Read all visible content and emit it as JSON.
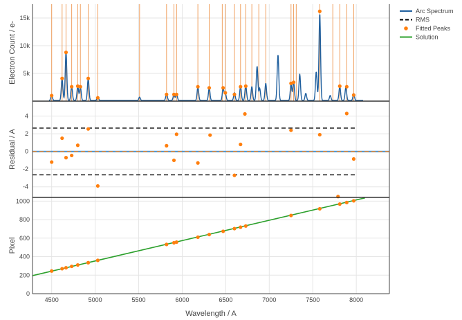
{
  "chart_data": {
    "type": "line",
    "xlabel": "Wavelength / A",
    "x_ticks": [
      4500,
      5000,
      5500,
      6000,
      6500,
      7000,
      7500,
      8000
    ],
    "xlim": [
      4280,
      8380
    ],
    "colors": {
      "spectrum": "#1f5f9e",
      "peaks": "#ff7f0e",
      "line_markers": "#f0a060",
      "rms": "#000000",
      "solution": "#2ca02c",
      "zero_line": "#4a90c8"
    },
    "legend": {
      "placement": "top-right",
      "entries": [
        "Arc Spectrum",
        "RMS",
        "Fitted Peaks",
        "Solution"
      ]
    },
    "panels": [
      {
        "name": "spectrum",
        "ylabel": "Electron Count / e-",
        "ylim": [
          0,
          17500
        ],
        "y_ticks": [
          5000,
          10000,
          15000
        ],
        "y_tick_labels": [
          "5k",
          "10k",
          "15k"
        ],
        "arc_lines": [
          4500,
          4620,
          4665,
          4730,
          4800,
          4830,
          4920,
          5030,
          5510,
          5820,
          5905,
          5935,
          6180,
          6310,
          6460,
          6495,
          6600,
          6670,
          6730,
          6800,
          6880,
          6960,
          7250,
          7280,
          7310,
          7580,
          7730,
          7810,
          7890,
          7970
        ],
        "spectrum_peaks": [
          [
            4500,
            1000
          ],
          [
            4620,
            4000
          ],
          [
            4665,
            8800
          ],
          [
            4730,
            2600
          ],
          [
            4800,
            2600
          ],
          [
            4830,
            2500
          ],
          [
            4920,
            4000
          ],
          [
            5030,
            700
          ],
          [
            5510,
            600
          ],
          [
            5820,
            1300
          ],
          [
            5905,
            1100
          ],
          [
            5935,
            1200
          ],
          [
            6180,
            2500
          ],
          [
            6310,
            2300
          ],
          [
            6470,
            2300
          ],
          [
            6495,
            1400
          ],
          [
            6600,
            1400
          ],
          [
            6670,
            2600
          ],
          [
            6730,
            2800
          ],
          [
            6800,
            2500
          ],
          [
            6860,
            6200
          ],
          [
            6890,
            2200
          ],
          [
            6960,
            3100
          ],
          [
            7100,
            8300
          ],
          [
            7250,
            3000
          ],
          [
            7280,
            3400
          ],
          [
            7350,
            4800
          ],
          [
            7420,
            1300
          ],
          [
            7540,
            5200
          ],
          [
            7580,
            15800
          ],
          [
            7700,
            900
          ],
          [
            7810,
            2600
          ],
          [
            7880,
            2400
          ],
          [
            7970,
            1200
          ]
        ],
        "fitted_peaks": [
          [
            4500,
            1000
          ],
          [
            4620,
            4100
          ],
          [
            4665,
            8800
          ],
          [
            4730,
            2600
          ],
          [
            4800,
            2700
          ],
          [
            4830,
            2600
          ],
          [
            4920,
            4100
          ],
          [
            5030,
            600
          ],
          [
            5820,
            1200
          ],
          [
            5905,
            1200
          ],
          [
            5935,
            1200
          ],
          [
            6180,
            2600
          ],
          [
            6310,
            2400
          ],
          [
            6470,
            2400
          ],
          [
            6495,
            1500
          ],
          [
            6600,
            1200
          ],
          [
            6670,
            2600
          ],
          [
            6730,
            2700
          ],
          [
            7250,
            3200
          ],
          [
            7280,
            3400
          ],
          [
            7580,
            16200
          ],
          [
            7810,
            2700
          ],
          [
            7890,
            2600
          ],
          [
            7970,
            1100
          ]
        ]
      },
      {
        "name": "residual",
        "ylabel": "Residual / A",
        "ylim": [
          -5.2,
          5.7
        ],
        "y_ticks": [
          -4,
          -2,
          0,
          2,
          4
        ],
        "rms": 2.65,
        "residual_points": [
          [
            4500,
            -1.2
          ],
          [
            4620,
            1.5
          ],
          [
            4665,
            -0.7
          ],
          [
            4730,
            -0.45
          ],
          [
            4800,
            0.7
          ],
          [
            4920,
            2.55
          ],
          [
            5030,
            -3.9
          ],
          [
            5820,
            0.65
          ],
          [
            5905,
            -1.0
          ],
          [
            5935,
            1.95
          ],
          [
            6180,
            -1.3
          ],
          [
            6320,
            1.85
          ],
          [
            6600,
            -2.7
          ],
          [
            6670,
            0.8
          ],
          [
            6720,
            4.25
          ],
          [
            7250,
            2.4
          ],
          [
            7580,
            1.9
          ],
          [
            7790,
            -5.1
          ],
          [
            7890,
            4.3
          ],
          [
            7970,
            -0.85
          ]
        ]
      },
      {
        "name": "solution",
        "ylabel": "Pixel",
        "ylim": [
          0,
          1040
        ],
        "y_ticks": [
          0,
          200,
          400,
          600,
          800,
          1000
        ],
        "solution_line": [
          [
            4280,
            195
          ],
          [
            8100,
            1035
          ]
        ],
        "solution_points": [
          [
            4500,
            245
          ],
          [
            4620,
            270
          ],
          [
            4665,
            280
          ],
          [
            4730,
            295
          ],
          [
            4800,
            310
          ],
          [
            4920,
            335
          ],
          [
            5030,
            360
          ],
          [
            5820,
            532
          ],
          [
            5905,
            550
          ],
          [
            5935,
            557
          ],
          [
            6180,
            610
          ],
          [
            6310,
            639
          ],
          [
            6470,
            674
          ],
          [
            6600,
            703
          ],
          [
            6670,
            718
          ],
          [
            6730,
            731
          ],
          [
            7250,
            845
          ],
          [
            7580,
            917
          ],
          [
            7810,
            968
          ],
          [
            7890,
            985
          ],
          [
            7970,
            1003
          ]
        ]
      }
    ]
  }
}
